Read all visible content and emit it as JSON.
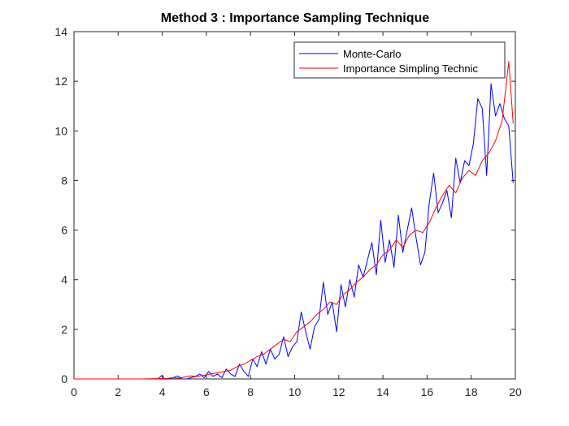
{
  "chart_data": {
    "type": "line",
    "title": "Method 3 : Importance Sampling Technique",
    "xlabel": "",
    "ylabel": "",
    "xlim": [
      0,
      20
    ],
    "ylim": [
      0,
      14
    ],
    "xticks": [
      0,
      2,
      4,
      6,
      8,
      10,
      12,
      14,
      16,
      18,
      20
    ],
    "yticks": [
      0,
      2,
      4,
      6,
      8,
      10,
      12,
      14
    ],
    "grid": false,
    "legend_position": "top-right",
    "series": [
      {
        "name": "Monte-Carlo",
        "color": "#0000ff",
        "x": [
          0,
          1,
          2,
          3,
          3.6,
          3.8,
          4.0,
          4.1,
          4.3,
          4.5,
          4.7,
          4.9,
          5.1,
          5.3,
          5.5,
          5.7,
          5.9,
          6.1,
          6.3,
          6.5,
          6.7,
          6.9,
          7.1,
          7.3,
          7.5,
          7.7,
          7.9,
          8.1,
          8.3,
          8.5,
          8.7,
          8.9,
          9.1,
          9.3,
          9.5,
          9.7,
          9.9,
          10.1,
          10.3,
          10.5,
          10.7,
          10.9,
          11.1,
          11.3,
          11.5,
          11.7,
          11.9,
          12.1,
          12.3,
          12.5,
          12.7,
          12.9,
          13.1,
          13.3,
          13.5,
          13.7,
          13.9,
          14.1,
          14.3,
          14.5,
          14.7,
          14.9,
          15.1,
          15.3,
          15.5,
          15.7,
          15.9,
          16.1,
          16.3,
          16.5,
          16.7,
          16.9,
          17.1,
          17.3,
          17.5,
          17.7,
          17.9,
          18.1,
          18.3,
          18.5,
          18.7,
          18.9,
          19.1,
          19.3,
          19.5,
          19.7,
          19.9
        ],
        "y": [
          0,
          0,
          0,
          0,
          0,
          0,
          0.15,
          0,
          0,
          0.05,
          0.12,
          0,
          0,
          0.05,
          0.1,
          0.2,
          0.05,
          0.3,
          0.1,
          0.2,
          0.05,
          0.4,
          0.2,
          0.1,
          0.6,
          0.3,
          0.1,
          0.8,
          0.5,
          1.1,
          0.6,
          1.2,
          0.8,
          1.0,
          1.7,
          0.9,
          1.3,
          1.5,
          2.7,
          1.9,
          1.2,
          2.1,
          2.4,
          3.9,
          2.6,
          3.1,
          1.9,
          3.8,
          2.9,
          4.0,
          3.3,
          4.6,
          4.1,
          4.8,
          5.5,
          4.2,
          6.4,
          4.7,
          5.6,
          4.5,
          6.6,
          5.1,
          6.0,
          6.9,
          5.7,
          4.6,
          5.1,
          7.1,
          8.3,
          6.7,
          7.1,
          7.6,
          6.5,
          8.9,
          7.9,
          8.8,
          8.6,
          9.5,
          11.3,
          10.9,
          8.2,
          11.9,
          10.6,
          11.1,
          10.5,
          10.2,
          7.9
        ]
      },
      {
        "name": "Importance Simpling Technic",
        "color": "#ff0000",
        "x": [
          0,
          1,
          2,
          3,
          4.2,
          4.5,
          4.8,
          5.0,
          5.3,
          5.6,
          5.9,
          6.2,
          6.5,
          6.8,
          7.1,
          7.4,
          7.7,
          8.0,
          8.3,
          8.6,
          8.9,
          9.2,
          9.5,
          9.8,
          10.1,
          10.4,
          10.7,
          11.0,
          11.3,
          11.6,
          11.9,
          12.2,
          12.5,
          12.8,
          13.1,
          13.4,
          13.7,
          14.0,
          14.3,
          14.6,
          14.9,
          15.2,
          15.5,
          15.8,
          16.1,
          16.4,
          16.7,
          17.0,
          17.3,
          17.6,
          17.9,
          18.2,
          18.5,
          18.8,
          19.1,
          19.4,
          19.7,
          19.9
        ],
        "y": [
          0,
          0,
          0,
          0,
          0.02,
          0.05,
          0.03,
          0.08,
          0.12,
          0.1,
          0.15,
          0.2,
          0.25,
          0.3,
          0.35,
          0.5,
          0.6,
          0.75,
          0.9,
          1.0,
          1.2,
          1.4,
          1.6,
          1.5,
          1.9,
          2.1,
          2.3,
          2.6,
          2.8,
          3.1,
          3.0,
          3.4,
          3.6,
          3.9,
          4.1,
          4.4,
          4.6,
          5.0,
          5.2,
          5.6,
          5.3,
          5.8,
          6.0,
          5.9,
          6.3,
          6.9,
          7.4,
          7.8,
          7.5,
          8.1,
          8.4,
          8.2,
          8.8,
          9.1,
          9.6,
          10.4,
          12.8,
          10.3
        ]
      }
    ]
  }
}
